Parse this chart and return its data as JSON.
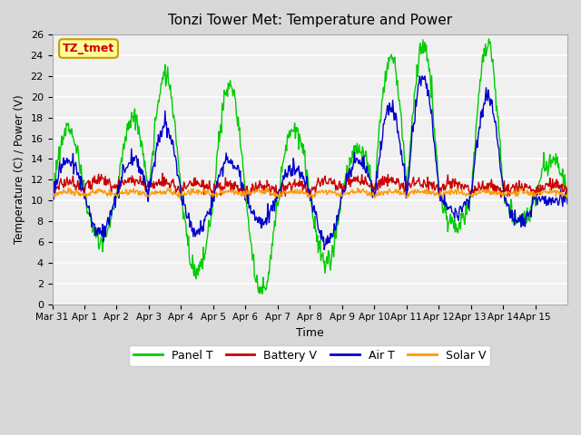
{
  "title": "Tonzi Tower Met: Temperature and Power",
  "xlabel": "Time",
  "ylabel": "Temperature (C) / Power (V)",
  "ylim": [
    0,
    26
  ],
  "yticks": [
    0,
    2,
    4,
    6,
    8,
    10,
    12,
    14,
    16,
    18,
    20,
    22,
    24,
    26
  ],
  "xtick_labels": [
    "Mar 31",
    "Apr 1",
    "Apr 2",
    "Apr 3",
    "Apr 4",
    "Apr 5",
    "Apr 6",
    "Apr 7",
    "Apr 8",
    "Apr 9",
    "Apr 10",
    "Apr 11",
    "Apr 12",
    "Apr 13",
    "Apr 14",
    "Apr 15"
  ],
  "bg_color": "#d8d8d8",
  "plot_bg": "#f0f0f0",
  "legend_label": "TZ_tmet",
  "series_colors": {
    "panel": "#00cc00",
    "battery": "#cc0000",
    "air": "#0000cc",
    "solar": "#ff9900"
  },
  "series_names": [
    "Panel T",
    "Battery V",
    "Air T",
    "Solar V"
  ],
  "n_days": 16,
  "pts_per_day": 48,
  "panel_peaks": [
    17,
    6,
    18,
    22,
    3,
    21,
    1,
    17,
    4,
    15,
    24,
    25,
    7.5,
    25,
    8,
    14
  ],
  "air_peaks": [
    14,
    7,
    14,
    17,
    7,
    14,
    8,
    13,
    6,
    14,
    19,
    22,
    9,
    20,
    8,
    10
  ]
}
